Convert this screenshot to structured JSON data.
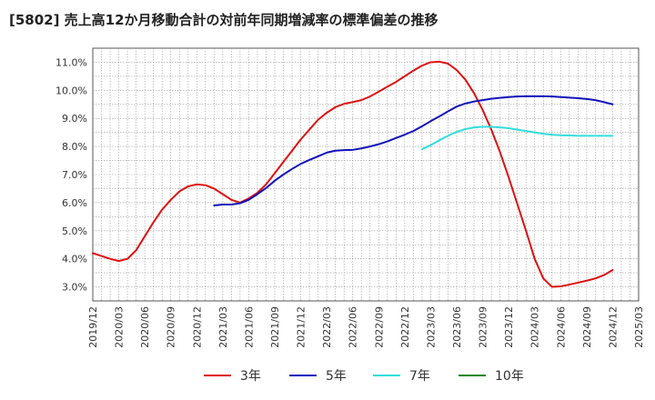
{
  "chart_data": {
    "type": "line",
    "title": "[5802]  売上高12か月移動合計の対前年同期増減率の標準偏差の推移",
    "xlabel": "",
    "ylabel": "",
    "ylim": [
      2.5,
      11.5
    ],
    "y_ticks": [
      "3.0%",
      "4.0%",
      "5.0%",
      "6.0%",
      "7.0%",
      "8.0%",
      "9.0%",
      "10.0%",
      "11.0%"
    ],
    "x_ticks": [
      "2019/12",
      "2020/03",
      "2020/06",
      "2020/09",
      "2020/12",
      "2021/03",
      "2021/06",
      "2021/09",
      "2021/12",
      "2022/03",
      "2022/06",
      "2022/09",
      "2022/12",
      "2023/03",
      "2023/06",
      "2023/09",
      "2023/12",
      "2024/03",
      "2024/06",
      "2024/09",
      "2024/12",
      "2025/03"
    ],
    "grid": true,
    "legend_position": "bottom",
    "series": [
      {
        "name": "3年",
        "color": "#dd1111",
        "x": [
          "2019/12",
          "2020/01",
          "2020/02",
          "2020/03",
          "2020/04",
          "2020/05",
          "2020/06",
          "2020/07",
          "2020/08",
          "2020/09",
          "2020/10",
          "2020/11",
          "2020/12",
          "2021/01",
          "2021/02",
          "2021/03",
          "2021/04",
          "2021/05",
          "2021/06",
          "2021/07",
          "2021/08",
          "2021/09",
          "2021/10",
          "2021/11",
          "2021/12",
          "2022/01",
          "2022/02",
          "2022/03",
          "2022/04",
          "2022/05",
          "2022/06",
          "2022/07",
          "2022/08",
          "2022/09",
          "2022/10",
          "2022/11",
          "2022/12",
          "2023/01",
          "2023/02",
          "2023/03",
          "2023/04",
          "2023/05",
          "2023/06",
          "2023/07",
          "2023/08",
          "2023/09",
          "2023/10",
          "2023/11",
          "2023/12",
          "2024/01",
          "2024/02",
          "2024/03",
          "2024/04",
          "2024/05",
          "2024/06",
          "2024/07",
          "2024/08",
          "2024/09",
          "2024/10",
          "2024/11",
          "2024/12"
        ],
        "values": [
          4.2,
          4.1,
          4.0,
          3.92,
          4.0,
          4.3,
          4.8,
          5.3,
          5.75,
          6.1,
          6.4,
          6.58,
          6.65,
          6.62,
          6.5,
          6.3,
          6.1,
          6.0,
          6.15,
          6.35,
          6.65,
          7.05,
          7.45,
          7.85,
          8.25,
          8.6,
          8.95,
          9.2,
          9.4,
          9.52,
          9.58,
          9.65,
          9.78,
          9.95,
          10.13,
          10.3,
          10.5,
          10.7,
          10.88,
          11.0,
          11.02,
          10.95,
          10.72,
          10.38,
          9.9,
          9.3,
          8.6,
          7.8,
          6.9,
          5.95,
          5.0,
          4.0,
          3.3,
          3.0,
          3.02,
          3.08,
          3.15,
          3.22,
          3.3,
          3.42,
          3.6
        ]
      },
      {
        "name": "5年",
        "color": "#1111bb",
        "x": [
          "2021/02",
          "2021/03",
          "2021/04",
          "2021/05",
          "2021/06",
          "2021/07",
          "2021/08",
          "2021/09",
          "2021/10",
          "2021/11",
          "2021/12",
          "2022/01",
          "2022/02",
          "2022/03",
          "2022/04",
          "2022/05",
          "2022/06",
          "2022/07",
          "2022/08",
          "2022/09",
          "2022/10",
          "2022/11",
          "2022/12",
          "2023/01",
          "2023/02",
          "2023/03",
          "2023/04",
          "2023/05",
          "2023/06",
          "2023/07",
          "2023/08",
          "2023/09",
          "2023/10",
          "2023/11",
          "2023/12",
          "2024/01",
          "2024/02",
          "2024/03",
          "2024/04",
          "2024/05",
          "2024/06",
          "2024/07",
          "2024/08",
          "2024/09",
          "2024/10",
          "2024/11",
          "2024/12"
        ],
        "values": [
          5.9,
          5.93,
          5.93,
          5.98,
          6.1,
          6.3,
          6.52,
          6.78,
          7.0,
          7.2,
          7.38,
          7.52,
          7.65,
          7.78,
          7.85,
          7.87,
          7.88,
          7.93,
          8.0,
          8.08,
          8.18,
          8.3,
          8.42,
          8.55,
          8.72,
          8.9,
          9.07,
          9.25,
          9.42,
          9.53,
          9.6,
          9.65,
          9.7,
          9.73,
          9.76,
          9.78,
          9.79,
          9.79,
          9.79,
          9.78,
          9.76,
          9.74,
          9.72,
          9.69,
          9.65,
          9.58,
          9.5
        ]
      },
      {
        "name": "7年",
        "color": "#33dddd",
        "x": [
          "2023/02",
          "2023/03",
          "2023/04",
          "2023/05",
          "2023/06",
          "2023/07",
          "2023/08",
          "2023/09",
          "2023/10",
          "2023/11",
          "2023/12",
          "2024/01",
          "2024/02",
          "2024/03",
          "2024/04",
          "2024/05",
          "2024/06",
          "2024/07",
          "2024/08",
          "2024/09",
          "2024/10",
          "2024/11",
          "2024/12"
        ],
        "values": [
          7.9,
          8.05,
          8.22,
          8.38,
          8.52,
          8.62,
          8.68,
          8.7,
          8.7,
          8.68,
          8.65,
          8.6,
          8.55,
          8.5,
          8.45,
          8.42,
          8.4,
          8.39,
          8.38,
          8.38,
          8.38,
          8.38,
          8.38
        ]
      },
      {
        "name": "10年",
        "color": "#118811",
        "x": [],
        "values": []
      }
    ]
  }
}
